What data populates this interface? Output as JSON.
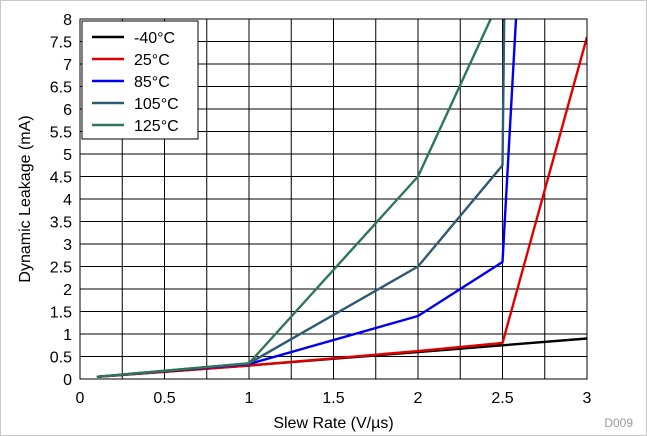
{
  "chart_data": {
    "type": "line",
    "xlabel": "Slew Rate (V/µs)",
    "ylabel": "Dynamic Leakage (mA)",
    "xlim": [
      0,
      3
    ],
    "ylim": [
      0,
      8
    ],
    "x_ticks": [
      "0",
      "0.5",
      "1",
      "1.5",
      "2",
      "2.5",
      "3"
    ],
    "y_ticks": [
      "0",
      "0.5",
      "1",
      "1.5",
      "2",
      "2.5",
      "3",
      "3.5",
      "4",
      "4.5",
      "5",
      "5.5",
      "6",
      "6.5",
      "7",
      "7.5",
      "8"
    ],
    "grid": true,
    "legend_position": "top-left",
    "figure_id": "D009",
    "series": [
      {
        "name": "-40°C",
        "color": "#000000",
        "points": [
          [
            0.1,
            0.05
          ],
          [
            1.0,
            0.3
          ],
          [
            2.0,
            0.6
          ],
          [
            2.5,
            0.75
          ],
          [
            3.0,
            0.9
          ]
        ]
      },
      {
        "name": "25°C",
        "color": "#e00000",
        "points": [
          [
            0.1,
            0.05
          ],
          [
            1.0,
            0.3
          ],
          [
            2.0,
            0.62
          ],
          [
            2.5,
            0.8
          ],
          [
            3.0,
            7.6
          ]
        ]
      },
      {
        "name": "85°C",
        "color": "#0000ee",
        "points": [
          [
            0.1,
            0.05
          ],
          [
            1.0,
            0.33
          ],
          [
            2.0,
            1.4
          ],
          [
            2.5,
            2.6
          ],
          [
            2.58,
            8.0
          ]
        ]
      },
      {
        "name": "105°C",
        "color": "#2f5b74",
        "points": [
          [
            0.1,
            0.05
          ],
          [
            1.0,
            0.35
          ],
          [
            2.0,
            2.5
          ],
          [
            2.5,
            4.75
          ],
          [
            2.51,
            8.0
          ]
        ]
      },
      {
        "name": "125°C",
        "color": "#2e7657",
        "points": [
          [
            0.1,
            0.05
          ],
          [
            1.0,
            0.35
          ],
          [
            2.0,
            4.5
          ],
          [
            2.43,
            8.0
          ]
        ]
      }
    ]
  }
}
